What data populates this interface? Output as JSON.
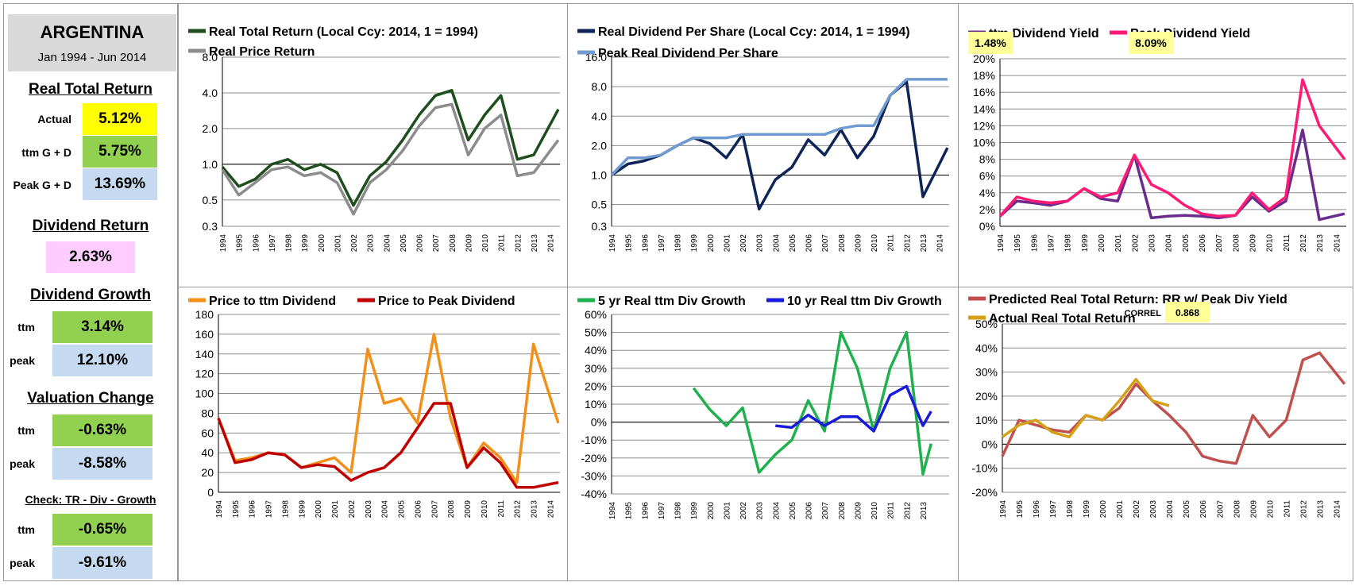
{
  "sidebar": {
    "country": "ARGENTINA",
    "period": "Jan 1994 - Jun 2014",
    "real_total_return": {
      "title": "Real Total Return",
      "actual_label": "Actual",
      "actual": "5.12%",
      "ttm_label": "ttm  G + D",
      "ttm": "5.75%",
      "peak_label": "Peak  G + D",
      "peak": "13.69%"
    },
    "dividend_return": {
      "title": "Dividend Return",
      "value": "2.63%"
    },
    "dividend_growth": {
      "title": "Dividend Growth",
      "ttm_label": "ttm",
      "ttm": "3.14%",
      "peak_label": "peak",
      "peak": "12.10%"
    },
    "valuation_change": {
      "title": "Valuation Change",
      "ttm_label": "ttm",
      "ttm": "-0.63%",
      "peak_label": "peak",
      "peak": "-8.58%"
    },
    "check": {
      "title": "Check: TR - Div - Growth",
      "ttm_label": "ttm",
      "ttm": "-0.65%",
      "peak_label": "peak",
      "peak": "-9.61%"
    }
  },
  "colors": {
    "dark_green": "#1e4d1e",
    "gray": "#8c8c8c",
    "navy": "#0f2557",
    "light_blue": "#6f9bd1",
    "purple": "#6a2c8c",
    "pink": "#ff1a75",
    "orange": "#f39019",
    "dark_red": "#c00000",
    "green": "#1fb14d",
    "blue": "#1a1adb",
    "brick": "#c0504d",
    "gold": "#d4a017",
    "yellow_box": "#ffff99"
  },
  "chart_data": [
    {
      "id": "c1",
      "type": "line",
      "yscale": "log",
      "ylim": [
        0.3,
        8
      ],
      "yticks": [
        "0.3",
        "0.5",
        "1.0",
        "2.0",
        "4.0",
        "8.0"
      ],
      "legend": [
        "Real Total Return (Local Ccy: 2014, 1 = 1994)",
        "Real Price Return"
      ],
      "x": [
        1994,
        1995,
        1996,
        1997,
        1998,
        1999,
        2000,
        2001,
        2002,
        2003,
        2004,
        2005,
        2006,
        2007,
        2008,
        2009,
        2010,
        2011,
        2012,
        2013,
        2014.5
      ],
      "series": [
        {
          "name": "Real Total Return (Local Ccy: 2014, 1 = 1994)",
          "color": "#1e4d1e",
          "values": [
            0.95,
            0.65,
            0.75,
            1.0,
            1.1,
            0.9,
            1.0,
            0.85,
            0.45,
            0.8,
            1.05,
            1.6,
            2.6,
            3.8,
            4.2,
            1.6,
            2.6,
            3.8,
            1.1,
            1.2,
            2.9
          ]
        },
        {
          "name": "Real Price Return",
          "color": "#8c8c8c",
          "values": [
            0.9,
            0.55,
            0.7,
            0.9,
            0.95,
            0.8,
            0.85,
            0.7,
            0.38,
            0.7,
            0.9,
            1.3,
            2.1,
            3.0,
            3.2,
            1.2,
            2.0,
            2.6,
            0.8,
            0.85,
            1.6
          ]
        }
      ]
    },
    {
      "id": "c2",
      "type": "line",
      "yscale": "log",
      "ylim": [
        0.3,
        16
      ],
      "yticks": [
        "0.3",
        "0.5",
        "1.0",
        "2.0",
        "4.0",
        "8.0",
        "16.0"
      ],
      "legend": [
        "Real Dividend Per Share (Local Ccy: 2014, 1 = 1994)",
        "Peak Real Dividend Per Share"
      ],
      "x": [
        1994,
        1995,
        1996,
        1997,
        1998,
        1999,
        2000,
        2001,
        2002,
        2003,
        2004,
        2005,
        2006,
        2007,
        2008,
        2009,
        2010,
        2011,
        2012,
        2013,
        2014.5
      ],
      "series": [
        {
          "name": "Real Dividend Per Share (Local Ccy: 2014, 1 = 1994)",
          "color": "#0f2557",
          "values": [
            1.0,
            1.3,
            1.4,
            1.6,
            2.0,
            2.4,
            2.1,
            1.5,
            2.6,
            0.45,
            0.9,
            1.2,
            2.3,
            1.6,
            2.9,
            1.5,
            2.5,
            6.5,
            9.0,
            0.6,
            1.9
          ]
        },
        {
          "name": "Peak Real Dividend Per Share",
          "color": "#6f9bd1",
          "values": [
            1.0,
            1.5,
            1.5,
            1.6,
            2.0,
            2.4,
            2.4,
            2.4,
            2.6,
            2.6,
            2.6,
            2.6,
            2.6,
            2.6,
            3.0,
            3.2,
            3.2,
            6.5,
            9.5,
            9.5,
            9.5
          ]
        }
      ]
    },
    {
      "id": "c3",
      "type": "line",
      "ylim": [
        0,
        20
      ],
      "yticks": [
        "0%",
        "2%",
        "4%",
        "6%",
        "8%",
        "10%",
        "12%",
        "14%",
        "16%",
        "18%",
        "20%"
      ],
      "legend": [
        "ttm Dividend Yield",
        "Peak Dividend Yield"
      ],
      "badges": [
        "1.48%",
        "8.09%"
      ],
      "x": [
        1994,
        1995,
        1996,
        1997,
        1998,
        1999,
        2000,
        2001,
        2002,
        2003,
        2004,
        2005,
        2006,
        2007,
        2008,
        2009,
        2010,
        2011,
        2012,
        2013,
        2014.5
      ],
      "series": [
        {
          "name": "ttm Dividend Yield",
          "color": "#6a2c8c",
          "values": [
            1.2,
            3.0,
            2.8,
            2.5,
            3.0,
            4.5,
            3.3,
            3.0,
            8.5,
            1.0,
            1.2,
            1.3,
            1.2,
            1.0,
            1.3,
            3.5,
            1.8,
            3.0,
            11.5,
            0.8,
            1.5
          ]
        },
        {
          "name": "Peak Dividend Yield",
          "color": "#ff1a75",
          "values": [
            1.2,
            3.5,
            3.0,
            2.8,
            3.0,
            4.5,
            3.5,
            4.0,
            8.5,
            5.0,
            4.0,
            2.5,
            1.5,
            1.2,
            1.3,
            4.0,
            2.0,
            3.5,
            17.5,
            12.0,
            8.0
          ]
        }
      ]
    },
    {
      "id": "c4",
      "type": "line",
      "ylim": [
        0,
        180
      ],
      "yticks": [
        "0",
        "20",
        "40",
        "60",
        "80",
        "100",
        "120",
        "140",
        "160",
        "180"
      ],
      "legend": [
        "Price to ttm Dividend",
        "Price to Peak Dividend"
      ],
      "x": [
        1994,
        1995,
        1996,
        1997,
        1998,
        1999,
        2000,
        2001,
        2002,
        2003,
        2004,
        2005,
        2006,
        2007,
        2008,
        2009,
        2010,
        2011,
        2012,
        2013,
        2014.5
      ],
      "series": [
        {
          "name": "Price to ttm Dividend",
          "color": "#f39019",
          "values": [
            75,
            32,
            35,
            40,
            38,
            25,
            30,
            35,
            20,
            145,
            90,
            95,
            70,
            160,
            75,
            25,
            50,
            35,
            10,
            150,
            70
          ]
        },
        {
          "name": "Price to Peak Dividend",
          "color": "#c00000",
          "values": [
            75,
            30,
            33,
            40,
            38,
            25,
            28,
            26,
            12,
            20,
            25,
            40,
            65,
            90,
            90,
            25,
            45,
            30,
            5,
            5,
            10
          ]
        }
      ]
    },
    {
      "id": "c5",
      "type": "line",
      "ylim": [
        -40,
        60
      ],
      "yticks": [
        "-40%",
        "-30%",
        "-20%",
        "-10%",
        "0%",
        "10%",
        "20%",
        "30%",
        "40%",
        "50%",
        "60%"
      ],
      "legend": [
        "5 yr Real ttm Div Growth",
        "10 yr Real ttm Div Growth"
      ],
      "x": [
        1999,
        2000,
        2001,
        2002,
        2003,
        2004,
        2005,
        2006,
        2007,
        2008,
        2009,
        2010,
        2011,
        2012,
        2013,
        2013.5
      ],
      "series": [
        {
          "name": "5 yr Real ttm Div Growth",
          "color": "#1fb14d",
          "values": [
            19,
            7,
            -2,
            8,
            -28,
            -18,
            -10,
            12,
            -5,
            50,
            30,
            -5,
            30,
            50,
            -29,
            -12
          ]
        },
        {
          "name": "10 yr Real ttm Div Growth",
          "color": "#1a1adb",
          "values": [
            null,
            null,
            null,
            null,
            null,
            -2,
            -3,
            4,
            -2,
            3,
            3,
            -5,
            15,
            20,
            -2,
            6
          ]
        }
      ]
    },
    {
      "id": "c6",
      "type": "line",
      "ylim": [
        -20,
        50
      ],
      "yticks": [
        "-20%",
        "-10%",
        "0%",
        "10%",
        "20%",
        "30%",
        "40%",
        "50%"
      ],
      "legend": [
        "Predicted Real Total Return: RR w/ Peak Div Yield",
        "Actual Real Total Return"
      ],
      "correl_label": "CORREL",
      "correl": "0.868",
      "x": [
        1994,
        1995,
        1996,
        1997,
        1998,
        1999,
        2000,
        2001,
        2002,
        2003,
        2004,
        2005,
        2006,
        2007,
        2008,
        2009,
        2010,
        2011,
        2012,
        2013,
        2014.5
      ],
      "series": [
        {
          "name": "Predicted Real Total Return: RR w/ Peak Div Yield",
          "color": "#c0504d",
          "values": [
            -5,
            10,
            8,
            6,
            5,
            12,
            10,
            15,
            25,
            18,
            12,
            5,
            -5,
            -7,
            -8,
            12,
            3,
            10,
            35,
            38,
            25
          ]
        },
        {
          "name": "Actual Real Total Return",
          "color": "#d4a017",
          "values": [
            3,
            8,
            10,
            5,
            3,
            12,
            10,
            18,
            27,
            18,
            16,
            null,
            null,
            null,
            null,
            null,
            null,
            null,
            null,
            null,
            null
          ]
        }
      ]
    }
  ],
  "x_tick_labels": [
    "1994",
    "1995",
    "1996",
    "1997",
    "1998",
    "1999",
    "2000",
    "2001",
    "2002",
    "2003",
    "2004",
    "2005",
    "2006",
    "2007",
    "2008",
    "2009",
    "2010",
    "2011",
    "2012",
    "2013",
    "2014"
  ],
  "x_tick_labels_c5": [
    "1994",
    "1995",
    "1996",
    "1997",
    "1998",
    "1999",
    "2000",
    "2001",
    "2002",
    "2003",
    "2004",
    "2005",
    "2006",
    "2007",
    "2008",
    "2009",
    "2010",
    "2011",
    "2012",
    "2013"
  ]
}
